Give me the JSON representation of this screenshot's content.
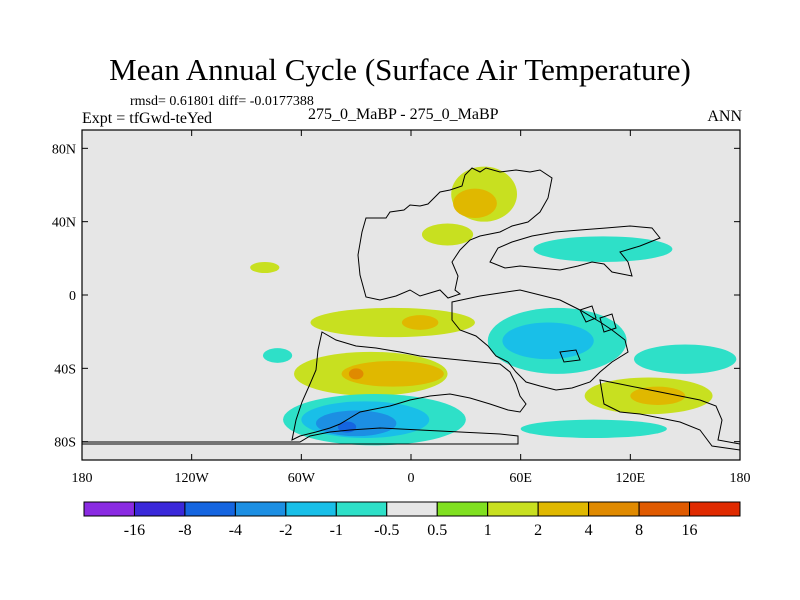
{
  "chart_data": {
    "type": "heatmap",
    "title": "Mean Annual Cycle (Surface Air Temperature)",
    "stats_text": "rmsd= 0.61801 diff= -0.0177388",
    "experiment_label": "Expt = tfGwd-teYed",
    "subtitle": "275_0_MaBP - 275_0_MaBP",
    "season": "ANN",
    "xlim": [
      -180,
      180
    ],
    "ylim": [
      -90,
      90
    ],
    "x_ticks": [
      {
        "value": -180,
        "label": "180"
      },
      {
        "value": -120,
        "label": "120W"
      },
      {
        "value": -60,
        "label": "60W"
      },
      {
        "value": 0,
        "label": "0"
      },
      {
        "value": 60,
        "label": "60E"
      },
      {
        "value": 120,
        "label": "120E"
      },
      {
        "value": 180,
        "label": "180"
      }
    ],
    "y_ticks": [
      {
        "value": 80,
        "label": "80N"
      },
      {
        "value": 40,
        "label": "40N"
      },
      {
        "value": 0,
        "label": "0"
      },
      {
        "value": -40,
        "label": "40S"
      },
      {
        "value": -80,
        "label": "80S"
      }
    ],
    "colorbar": {
      "colors": [
        "#8a2be2",
        "#3a28d9",
        "#1565e0",
        "#1c8fe3",
        "#19bfe8",
        "#2ee0c8",
        "#e6e6e6",
        "#80e020",
        "#c8e020",
        "#e0b800",
        "#e08a00",
        "#e05a00",
        "#e02a00"
      ],
      "labels": [
        "-16",
        "-8",
        "-4",
        "-2",
        "-1",
        "-0.5",
        "0.5",
        "1",
        "2",
        "4",
        "8",
        "16"
      ]
    },
    "anomaly_regions": [
      {
        "name": "asia-north-warm",
        "value": 1,
        "lon": 40,
        "lat": 55,
        "rlon": 18,
        "rlat": 15
      },
      {
        "name": "asia-north-core",
        "value": 2,
        "lon": 35,
        "lat": 50,
        "rlon": 12,
        "rlat": 8
      },
      {
        "name": "asia-east-warm",
        "value": 1,
        "lon": 20,
        "lat": 33,
        "rlon": 14,
        "rlat": 6
      },
      {
        "name": "north-cool-belt",
        "value": -1,
        "lon": 105,
        "lat": 25,
        "rlon": 38,
        "rlat": 7
      },
      {
        "name": "west-small-warm",
        "value": 1,
        "lon": -80,
        "lat": 15,
        "rlon": 8,
        "rlat": 3
      },
      {
        "name": "equator-warm",
        "value": 1,
        "lon": -10,
        "lat": -15,
        "rlon": 45,
        "rlat": 8
      },
      {
        "name": "equator-warm-core",
        "value": 2,
        "lon": 5,
        "lat": -15,
        "rlon": 10,
        "rlat": 4
      },
      {
        "name": "central-cool",
        "value": -1,
        "lon": 80,
        "lat": -25,
        "rlon": 38,
        "rlat": 18
      },
      {
        "name": "central-cool-core",
        "value": -2,
        "lon": 75,
        "lat": -25,
        "rlon": 25,
        "rlat": 10
      },
      {
        "name": "small-cool-west",
        "value": -1,
        "lon": -73,
        "lat": -33,
        "rlon": 8,
        "rlat": 4
      },
      {
        "name": "south-warm-west",
        "value": 1,
        "lon": -22,
        "lat": -43,
        "rlon": 42,
        "rlat": 12
      },
      {
        "name": "south-warm-core",
        "value": 2,
        "lon": -10,
        "lat": -43,
        "rlon": 28,
        "rlat": 7
      },
      {
        "name": "south-warm-hot",
        "value": 4,
        "lon": -30,
        "lat": -43,
        "rlon": 4,
        "rlat": 3
      },
      {
        "name": "east-cool-band",
        "value": -1,
        "lon": 150,
        "lat": -35,
        "rlon": 28,
        "rlat": 8
      },
      {
        "name": "east-warm-band",
        "value": 1,
        "lon": 130,
        "lat": -55,
        "rlon": 35,
        "rlat": 10
      },
      {
        "name": "east-warm-core",
        "value": 2,
        "lon": 135,
        "lat": -55,
        "rlon": 15,
        "rlat": 5
      },
      {
        "name": "southeast-cool",
        "value": -1,
        "lon": 100,
        "lat": -73,
        "rlon": 40,
        "rlat": 5
      },
      {
        "name": "south-cool-arc",
        "value": -1,
        "lon": -20,
        "lat": -68,
        "rlon": 50,
        "rlat": 14
      },
      {
        "name": "south-cool-mid",
        "value": -2,
        "lon": -25,
        "lat": -68,
        "rlon": 35,
        "rlat": 10
      },
      {
        "name": "south-cool-deep",
        "value": -4,
        "lon": -30,
        "lat": -70,
        "rlon": 22,
        "rlat": 7
      },
      {
        "name": "south-cool-core",
        "value": -8,
        "lon": -35,
        "lat": -72,
        "rlon": 5,
        "rlat": 3
      }
    ]
  }
}
